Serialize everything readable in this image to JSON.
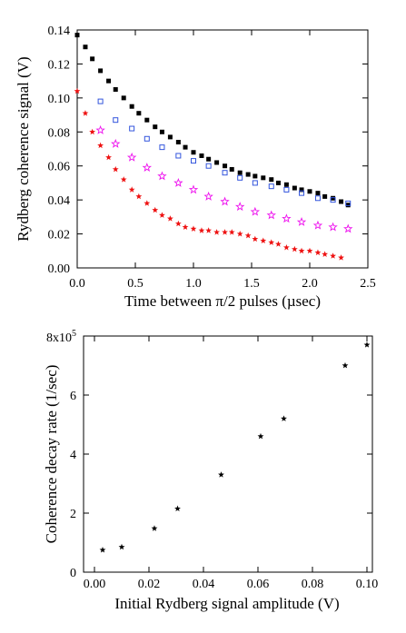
{
  "chart_data": [
    {
      "type": "scatter",
      "xlabel": "Time between π/2 pulses (µsec)",
      "ylabel": "Rydberg coherence signal (V)",
      "xlim": [
        0,
        2.5
      ],
      "ylim": [
        0,
        0.14
      ],
      "xticks": [
        "0.0",
        "0.5",
        "1.0",
        "1.5",
        "2.0",
        "2.5"
      ],
      "yticks": [
        "0.00",
        "0.02",
        "0.04",
        "0.06",
        "0.08",
        "0.10",
        "0.12",
        "0.14"
      ],
      "series": [
        {
          "marker": "filled-square",
          "color": "#000000",
          "x": [
            0.0,
            0.07,
            0.13,
            0.2,
            0.27,
            0.33,
            0.4,
            0.47,
            0.53,
            0.6,
            0.67,
            0.73,
            0.8,
            0.87,
            0.93,
            1.0,
            1.07,
            1.13,
            1.2,
            1.27,
            1.33,
            1.4,
            1.47,
            1.53,
            1.6,
            1.67,
            1.73,
            1.8,
            1.87,
            1.93,
            2.0,
            2.07,
            2.13,
            2.2,
            2.27,
            2.33
          ],
          "y": [
            0.137,
            0.13,
            0.123,
            0.116,
            0.11,
            0.105,
            0.1,
            0.095,
            0.091,
            0.087,
            0.083,
            0.08,
            0.077,
            0.074,
            0.071,
            0.068,
            0.066,
            0.064,
            0.062,
            0.06,
            0.058,
            0.056,
            0.055,
            0.054,
            0.053,
            0.052,
            0.05,
            0.049,
            0.047,
            0.046,
            0.045,
            0.044,
            0.042,
            0.041,
            0.039,
            0.037
          ]
        },
        {
          "marker": "open-square",
          "color": "#3355dd",
          "x": [
            0.2,
            0.33,
            0.47,
            0.6,
            0.73,
            0.87,
            1.0,
            1.13,
            1.27,
            1.4,
            1.53,
            1.67,
            1.8,
            1.93,
            2.07,
            2.2,
            2.33
          ],
          "y": [
            0.098,
            0.087,
            0.082,
            0.076,
            0.071,
            0.066,
            0.063,
            0.06,
            0.056,
            0.053,
            0.05,
            0.048,
            0.046,
            0.044,
            0.041,
            0.04,
            0.038
          ]
        },
        {
          "marker": "open-star",
          "color": "#ee11ee",
          "x": [
            0.2,
            0.33,
            0.47,
            0.6,
            0.73,
            0.87,
            1.0,
            1.13,
            1.27,
            1.4,
            1.53,
            1.67,
            1.8,
            1.93,
            2.07,
            2.2,
            2.33
          ],
          "y": [
            0.081,
            0.073,
            0.065,
            0.059,
            0.054,
            0.05,
            0.046,
            0.042,
            0.039,
            0.036,
            0.033,
            0.031,
            0.029,
            0.027,
            0.025,
            0.024,
            0.023
          ]
        },
        {
          "marker": "filled-star",
          "color": "#ee1111",
          "x": [
            0.0,
            0.07,
            0.13,
            0.2,
            0.27,
            0.33,
            0.4,
            0.47,
            0.53,
            0.6,
            0.67,
            0.73,
            0.8,
            0.87,
            0.93,
            1.0,
            1.07,
            1.13,
            1.2,
            1.27,
            1.33,
            1.4,
            1.47,
            1.53,
            1.6,
            1.67,
            1.73,
            1.8,
            1.87,
            1.93,
            2.0,
            2.07,
            2.13,
            2.2,
            2.27
          ],
          "y": [
            0.104,
            0.091,
            0.08,
            0.072,
            0.065,
            0.058,
            0.052,
            0.046,
            0.042,
            0.038,
            0.034,
            0.031,
            0.029,
            0.026,
            0.024,
            0.023,
            0.022,
            0.022,
            0.021,
            0.021,
            0.021,
            0.02,
            0.019,
            0.017,
            0.016,
            0.015,
            0.014,
            0.012,
            0.011,
            0.01,
            0.01,
            0.009,
            0.008,
            0.007,
            0.006
          ]
        }
      ]
    },
    {
      "type": "scatter",
      "xlabel": "Initial Rydberg signal amplitude (V)",
      "ylabel": "Coherence decay rate (1/sec)",
      "xlim": [
        -0.004,
        0.102
      ],
      "ylim": [
        0,
        800000
      ],
      "xticks": [
        "0.00",
        "0.02",
        "0.04",
        "0.06",
        "0.08",
        "0.10"
      ],
      "yticks": [
        "0",
        "2",
        "4",
        "6"
      ],
      "ytop_label": "8x10",
      "ytop_exponent": "5",
      "series": [
        {
          "marker": "filled-star",
          "color": "#000000",
          "x": [
            0.003,
            0.01,
            0.022,
            0.0305,
            0.0465,
            0.061,
            0.0695,
            0.092,
            0.1
          ],
          "y": [
            75000,
            85000,
            148000,
            215000,
            330000,
            460000,
            520000,
            700000,
            770000
          ]
        }
      ]
    }
  ]
}
